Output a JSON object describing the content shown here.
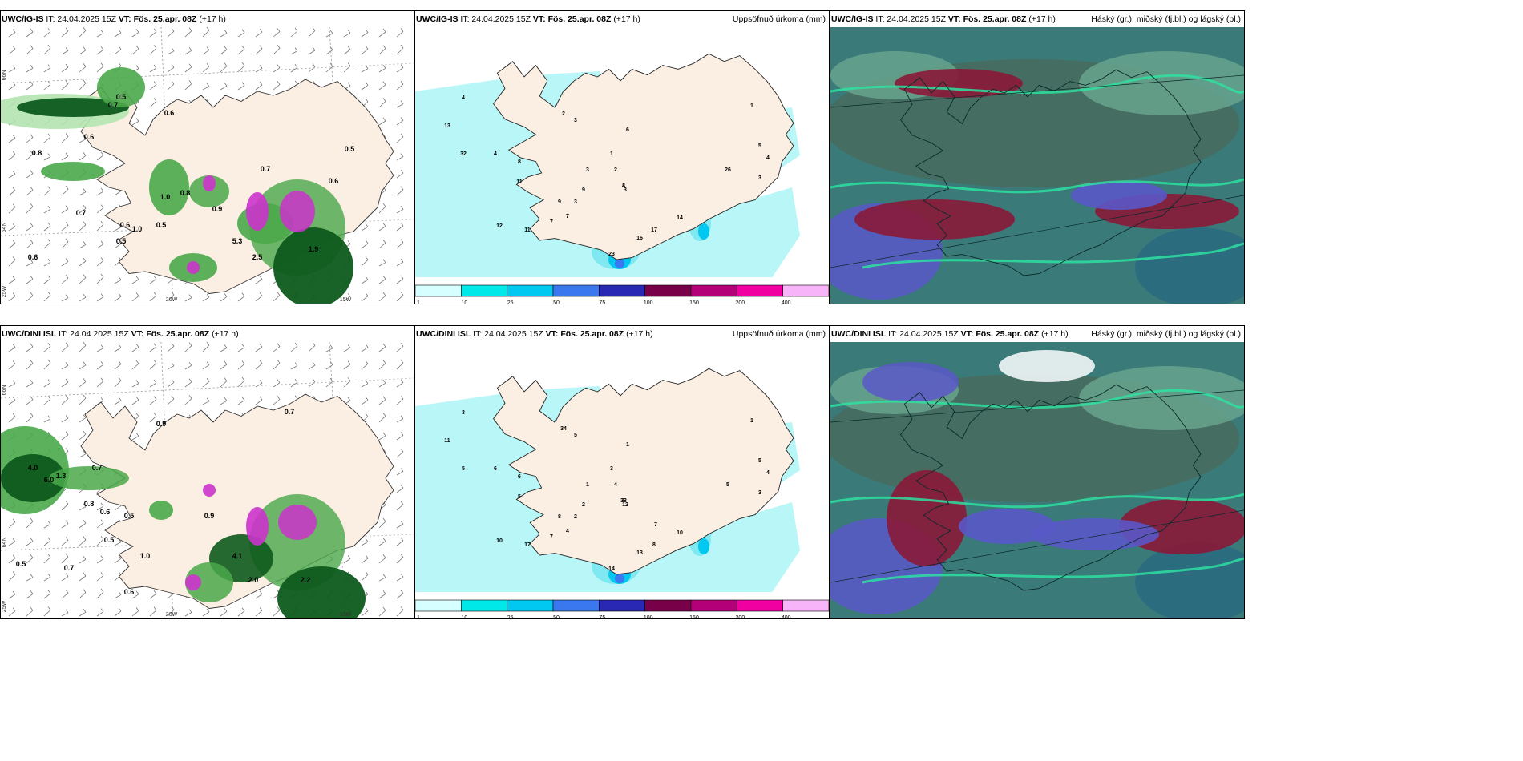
{
  "headers": {
    "it": "IT: 24.04.2025 15Z",
    "vt_label": "VT:",
    "vt": "Fös. 25.apr. 08Z",
    "lead": "(+17 h)"
  },
  "panels": [
    {
      "id": "p1",
      "model": "UWC/IG-IS",
      "right_title": "",
      "type": "wind"
    },
    {
      "id": "p2",
      "model": "UWC/IG-IS",
      "right_title": "Uppsöfnuð úrkoma (mm)",
      "type": "precip"
    },
    {
      "id": "p3",
      "model": "UWC/IG-IS",
      "right_title": "Háský (gr.), miðský (fj.bl.) og lágský (bl.)",
      "type": "cloud"
    },
    {
      "id": "p4",
      "model": "UWC/DINI ISL",
      "right_title": "",
      "type": "wind"
    },
    {
      "id": "p5",
      "model": "UWC/DINI ISL",
      "right_title": "Uppsöfnuð úrkoma (mm)",
      "type": "precip"
    },
    {
      "id": "p6",
      "model": "UWC/DINI ISL",
      "right_title": "Háský (gr.), miðský (fj.bl.) og lágský (bl.)",
      "type": "cloud"
    }
  ],
  "grid_labels": {
    "lat_top": "66N",
    "lat_mid": "64N",
    "lon_left": "25W",
    "lon_mid": "20W",
    "lon_right": "15W"
  },
  "colorbar": {
    "ticks": [
      "1",
      "10",
      "25",
      "50",
      "75",
      "100",
      "150",
      "200",
      "400"
    ],
    "colors": [
      "#d6ffff",
      "#00e8e8",
      "#00c8f0",
      "#3a78f0",
      "#2828b4",
      "#780048",
      "#b40078",
      "#f000a0",
      "#f8b4f8"
    ]
  },
  "colors": {
    "land": "#fbefe3",
    "sea_precip": "#b8f6f8",
    "dark_green": "#0d5a1c",
    "mid_green": "#4aa84a",
    "light_green": "#b4e4b0",
    "magenta": "#cc33cc",
    "cloud_teal": "#3a7a78",
    "cloud_red": "#8a1838",
    "cloud_blue": "#5a58c8"
  },
  "wind_labels_top": [
    "0.7",
    "0.5",
    "0.6",
    "0.8",
    "0.6",
    "0.5",
    "0.7",
    "0.9",
    "0.8",
    "1.0",
    "0.5",
    "0.6",
    "5.3",
    "2.5",
    "1.9",
    "0.6",
    "0.5",
    "0.6",
    "0.7",
    "1.0"
  ],
  "wind_labels_bottom": [
    "0.6",
    "4.0",
    "6.0",
    "0.7",
    "0.8",
    "0.9",
    "0.5",
    "0.7",
    "2.2",
    "2.0",
    "0.5",
    "1.0",
    "0.6",
    "0.5",
    "0.7",
    "0.9",
    "1.3",
    "4.1"
  ],
  "precip_labels_top": [
    "4",
    "13",
    "32",
    "2",
    "3",
    "4",
    "8",
    "11",
    "12",
    "9",
    "7",
    "3",
    "3",
    "2",
    "1",
    "6",
    "7",
    "9",
    "4",
    "3",
    "11",
    "3",
    "23",
    "16",
    "17",
    "14",
    "26",
    "5",
    "4",
    "3",
    "1"
  ],
  "precip_labels_bottom": [
    "3",
    "11",
    "5",
    "34",
    "5",
    "6",
    "6",
    "5",
    "10",
    "8",
    "7",
    "2",
    "1",
    "4",
    "3",
    "1",
    "4",
    "2",
    "6",
    "12",
    "17",
    "33",
    "14",
    "13",
    "8",
    "10",
    "5",
    "5",
    "4",
    "3",
    "1",
    "7"
  ]
}
